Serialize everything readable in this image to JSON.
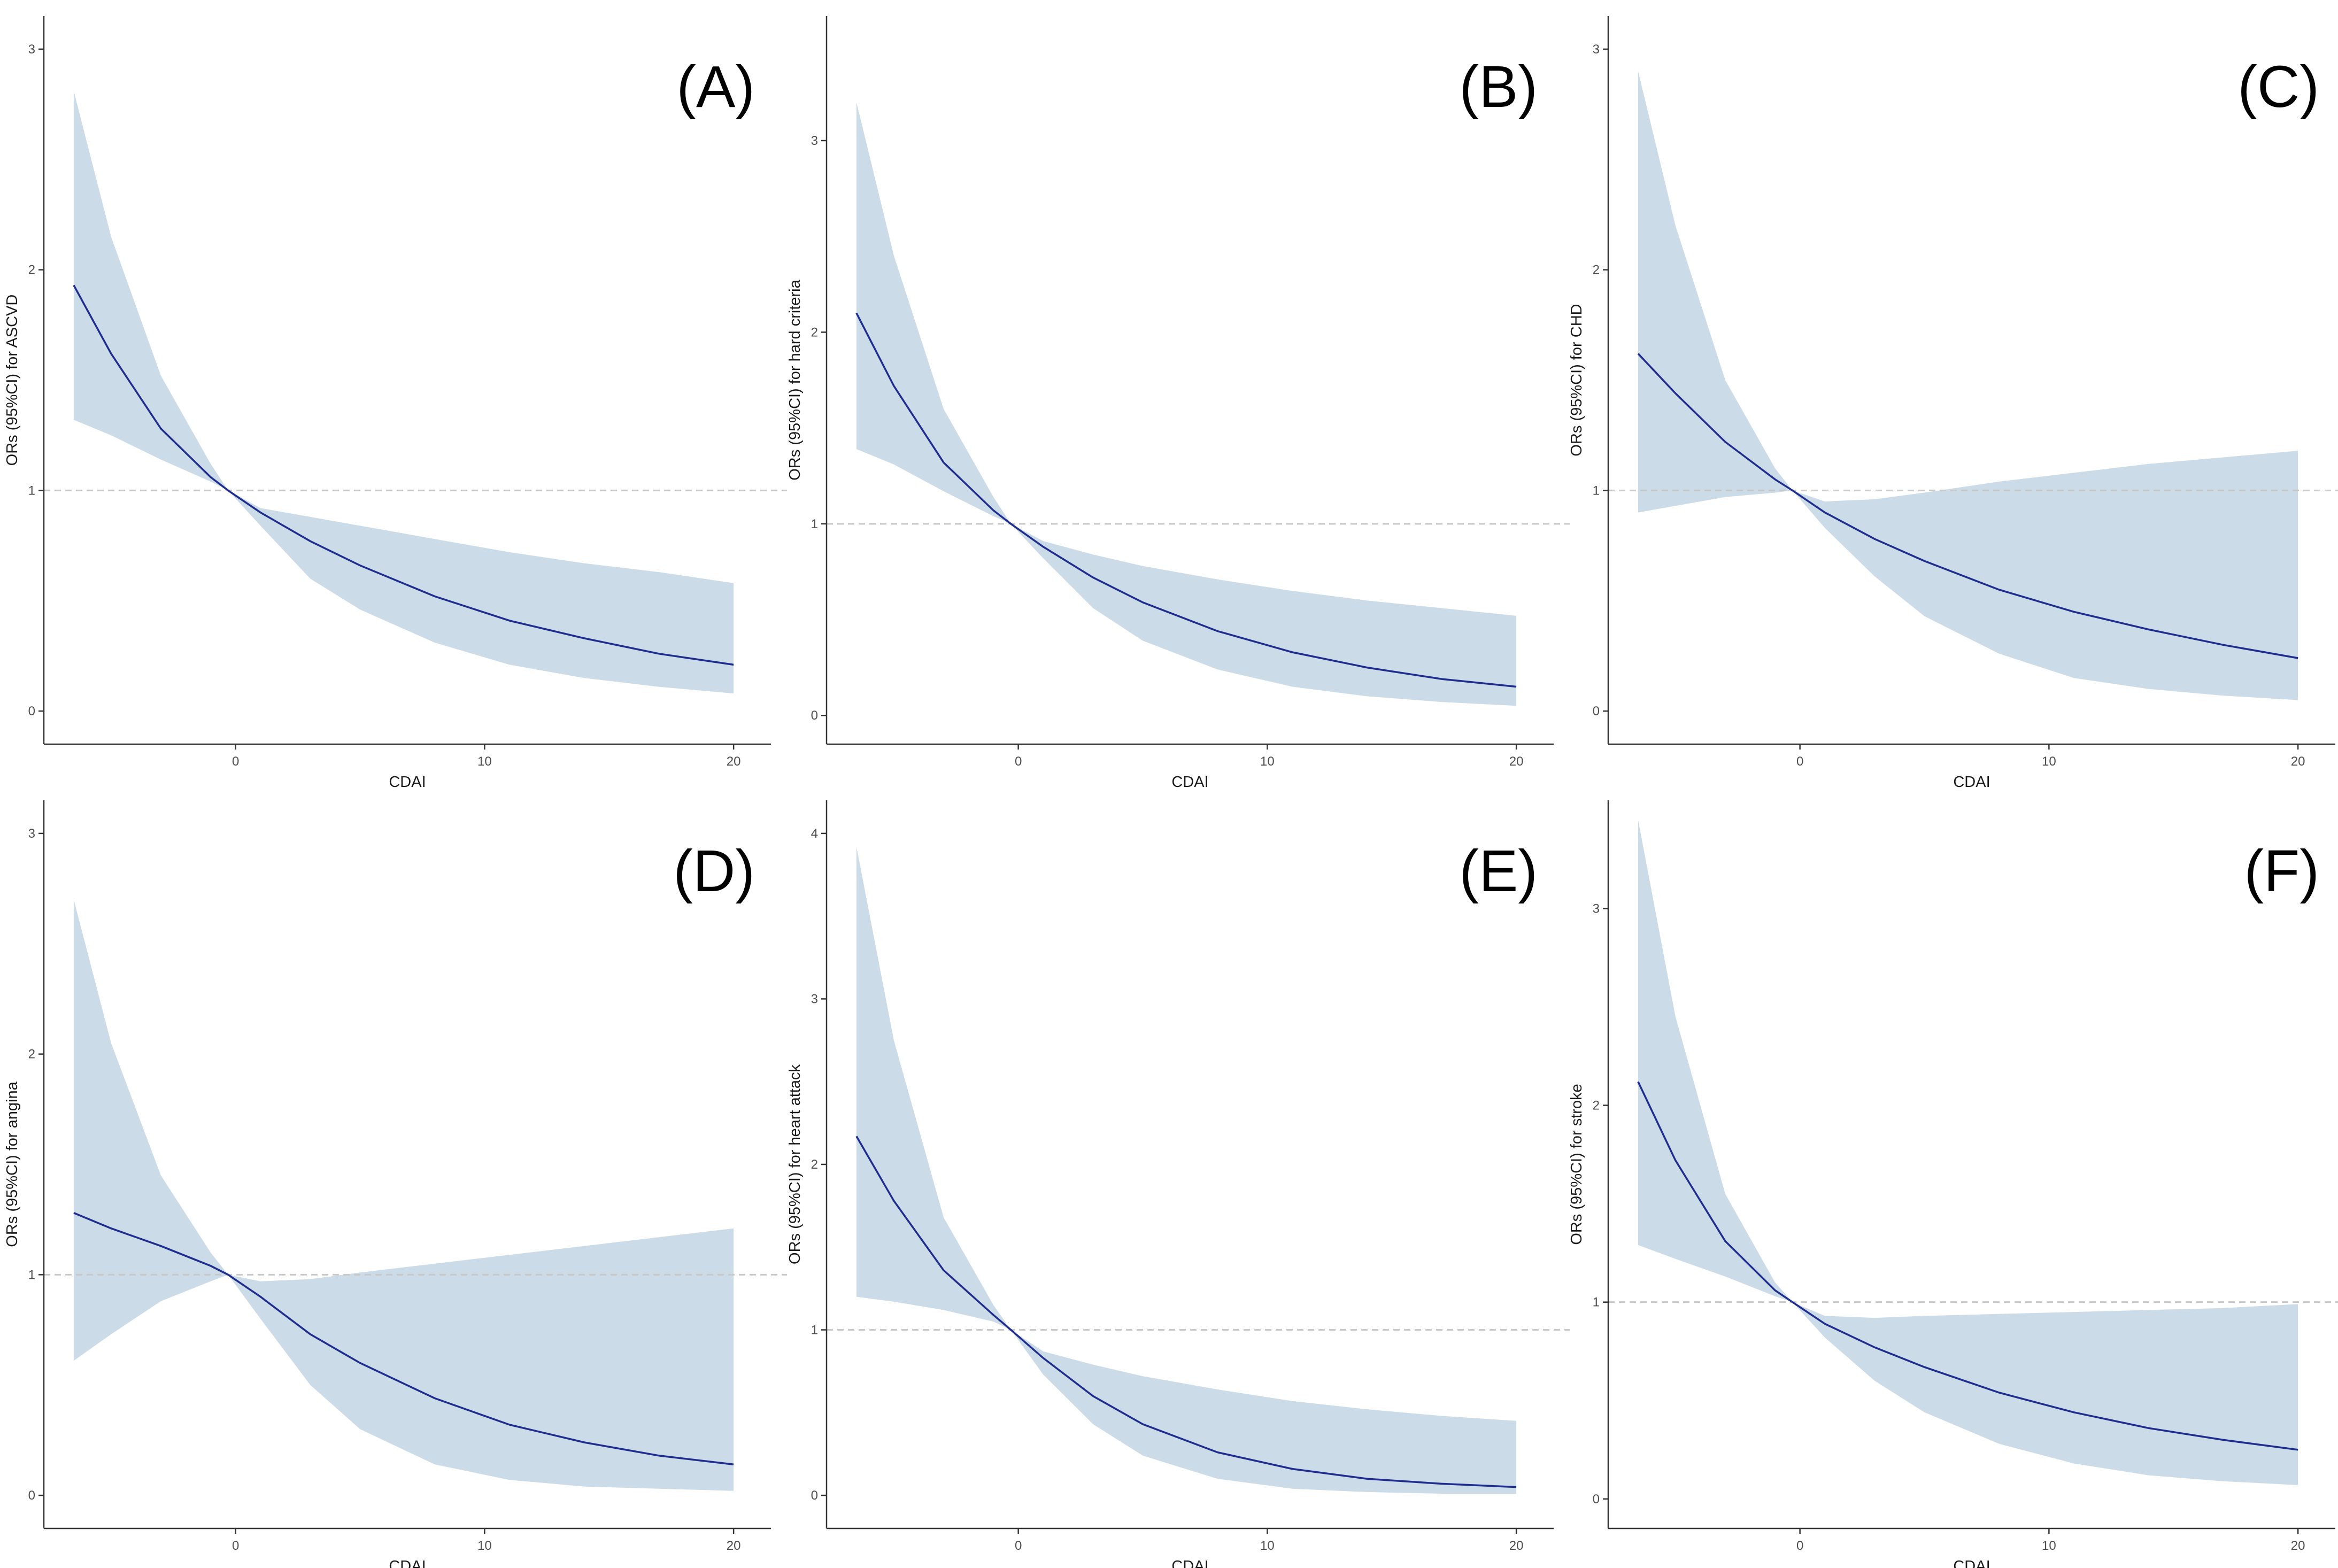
{
  "figure": {
    "panel_count": 6
  },
  "colors": {
    "band": "#cbdbe7",
    "line": "#1f2d8f",
    "reference": "#c8c8c8",
    "axis": "#333333"
  },
  "chart_data": [
    {
      "type": "line",
      "panel_label": "(A)",
      "title": "",
      "xlabel": "CDAI",
      "ylabel": "ORs (95%CI) for ASCVD",
      "xlim": [
        -7.7,
        21.5
      ],
      "ylim": [
        -0.15,
        3.15
      ],
      "xticks": [
        0,
        10,
        20
      ],
      "yticks": [
        0,
        1,
        2,
        3
      ],
      "reference_y": 1,
      "x": [
        -6.5,
        -5,
        -3,
        -1,
        -0.3,
        1,
        3,
        5,
        8,
        11,
        14,
        17,
        20
      ],
      "y": [
        1.93,
        1.62,
        1.28,
        1.06,
        1.0,
        0.9,
        0.77,
        0.66,
        0.52,
        0.41,
        0.33,
        0.26,
        0.21
      ],
      "lower": [
        1.32,
        1.25,
        1.14,
        1.04,
        1.0,
        0.84,
        0.6,
        0.46,
        0.31,
        0.21,
        0.15,
        0.11,
        0.08
      ],
      "upper": [
        2.81,
        2.15,
        1.52,
        1.12,
        1.0,
        0.92,
        0.88,
        0.84,
        0.78,
        0.72,
        0.67,
        0.63,
        0.58
      ]
    },
    {
      "type": "line",
      "panel_label": "(B)",
      "title": "",
      "xlabel": "CDAI",
      "ylabel": "ORs (95%CI) for hard criteria",
      "xlim": [
        -7.7,
        21.5
      ],
      "ylim": [
        -0.15,
        3.65
      ],
      "xticks": [
        0,
        10,
        20
      ],
      "yticks": [
        0,
        1,
        2,
        3
      ],
      "reference_y": 1,
      "x": [
        -6.5,
        -5,
        -3,
        -1,
        -0.3,
        1,
        3,
        5,
        8,
        11,
        14,
        17,
        20
      ],
      "y": [
        2.1,
        1.72,
        1.32,
        1.07,
        1.0,
        0.88,
        0.72,
        0.59,
        0.44,
        0.33,
        0.25,
        0.19,
        0.15
      ],
      "lower": [
        1.39,
        1.31,
        1.17,
        1.04,
        1.0,
        0.82,
        0.56,
        0.39,
        0.24,
        0.15,
        0.1,
        0.07,
        0.05
      ],
      "upper": [
        3.2,
        2.4,
        1.6,
        1.14,
        1.0,
        0.91,
        0.84,
        0.78,
        0.71,
        0.65,
        0.6,
        0.56,
        0.52
      ]
    },
    {
      "type": "line",
      "panel_label": "(C)",
      "title": "",
      "xlabel": "CDAI",
      "ylabel": "ORs (95%CI) for CHD",
      "xlim": [
        -7.7,
        21.5
      ],
      "ylim": [
        -0.15,
        3.15
      ],
      "xticks": [
        0,
        10,
        20
      ],
      "yticks": [
        0,
        1,
        2,
        3
      ],
      "reference_y": 1,
      "x": [
        -6.5,
        -5,
        -3,
        -1,
        -0.3,
        1,
        3,
        5,
        8,
        11,
        14,
        17,
        20
      ],
      "y": [
        1.62,
        1.44,
        1.22,
        1.05,
        1.0,
        0.9,
        0.78,
        0.68,
        0.55,
        0.45,
        0.37,
        0.3,
        0.24
      ],
      "lower": [
        0.9,
        0.93,
        0.97,
        0.99,
        1.0,
        0.83,
        0.61,
        0.43,
        0.26,
        0.15,
        0.1,
        0.07,
        0.05
      ],
      "upper": [
        2.9,
        2.2,
        1.5,
        1.1,
        1.0,
        0.95,
        0.96,
        0.99,
        1.04,
        1.08,
        1.12,
        1.15,
        1.18
      ]
    },
    {
      "type": "line",
      "panel_label": "(D)",
      "title": "",
      "xlabel": "CDAI",
      "ylabel": "ORs (95%CI) for angina",
      "xlim": [
        -7.7,
        21.5
      ],
      "ylim": [
        -0.15,
        3.15
      ],
      "xticks": [
        0,
        10,
        20
      ],
      "yticks": [
        0,
        1,
        2,
        3
      ],
      "reference_y": 1,
      "x": [
        -6.5,
        -5,
        -3,
        -1,
        -0.3,
        1,
        3,
        5,
        8,
        11,
        14,
        17,
        20
      ],
      "y": [
        1.28,
        1.21,
        1.13,
        1.04,
        1.0,
        0.9,
        0.73,
        0.6,
        0.44,
        0.32,
        0.24,
        0.18,
        0.14
      ],
      "lower": [
        0.61,
        0.73,
        0.88,
        0.97,
        1.0,
        0.8,
        0.5,
        0.3,
        0.14,
        0.07,
        0.04,
        0.03,
        0.02
      ],
      "upper": [
        2.7,
        2.05,
        1.45,
        1.1,
        1.0,
        0.97,
        0.98,
        1.01,
        1.05,
        1.09,
        1.13,
        1.17,
        1.21
      ]
    },
    {
      "type": "line",
      "panel_label": "(E)",
      "title": "",
      "xlabel": "CDAI",
      "ylabel": "ORs (95%CI) for heart attack",
      "xlim": [
        -7.7,
        21.5
      ],
      "ylim": [
        -0.2,
        4.2
      ],
      "xticks": [
        0,
        10,
        20
      ],
      "yticks": [
        0,
        1,
        2,
        3,
        4
      ],
      "reference_y": 1,
      "x": [
        -6.5,
        -5,
        -3,
        -1,
        -0.3,
        1,
        3,
        5,
        8,
        11,
        14,
        17,
        20
      ],
      "y": [
        2.17,
        1.78,
        1.36,
        1.09,
        1.0,
        0.83,
        0.6,
        0.43,
        0.26,
        0.16,
        0.1,
        0.07,
        0.05
      ],
      "lower": [
        1.2,
        1.17,
        1.12,
        1.05,
        1.0,
        0.73,
        0.43,
        0.24,
        0.1,
        0.04,
        0.02,
        0.01,
        0.01
      ],
      "upper": [
        3.92,
        2.75,
        1.68,
        1.15,
        1.0,
        0.87,
        0.79,
        0.72,
        0.64,
        0.57,
        0.52,
        0.48,
        0.45
      ]
    },
    {
      "type": "line",
      "panel_label": "(F)",
      "title": "",
      "xlabel": "CDAI",
      "ylabel": "ORs (95%CI) for stroke",
      "xlim": [
        -7.7,
        21.5
      ],
      "ylim": [
        -0.15,
        3.55
      ],
      "xticks": [
        0,
        10,
        20
      ],
      "yticks": [
        0,
        1,
        2,
        3
      ],
      "reference_y": 1,
      "x": [
        -6.5,
        -5,
        -3,
        -1,
        -0.3,
        1,
        3,
        5,
        8,
        11,
        14,
        17,
        20
      ],
      "y": [
        2.12,
        1.72,
        1.31,
        1.06,
        1.0,
        0.89,
        0.77,
        0.67,
        0.54,
        0.44,
        0.36,
        0.3,
        0.25
      ],
      "lower": [
        1.29,
        1.22,
        1.13,
        1.03,
        1.0,
        0.82,
        0.6,
        0.44,
        0.28,
        0.18,
        0.12,
        0.09,
        0.07
      ],
      "upper": [
        3.45,
        2.45,
        1.55,
        1.1,
        1.0,
        0.93,
        0.92,
        0.93,
        0.94,
        0.95,
        0.96,
        0.97,
        0.99
      ]
    }
  ]
}
